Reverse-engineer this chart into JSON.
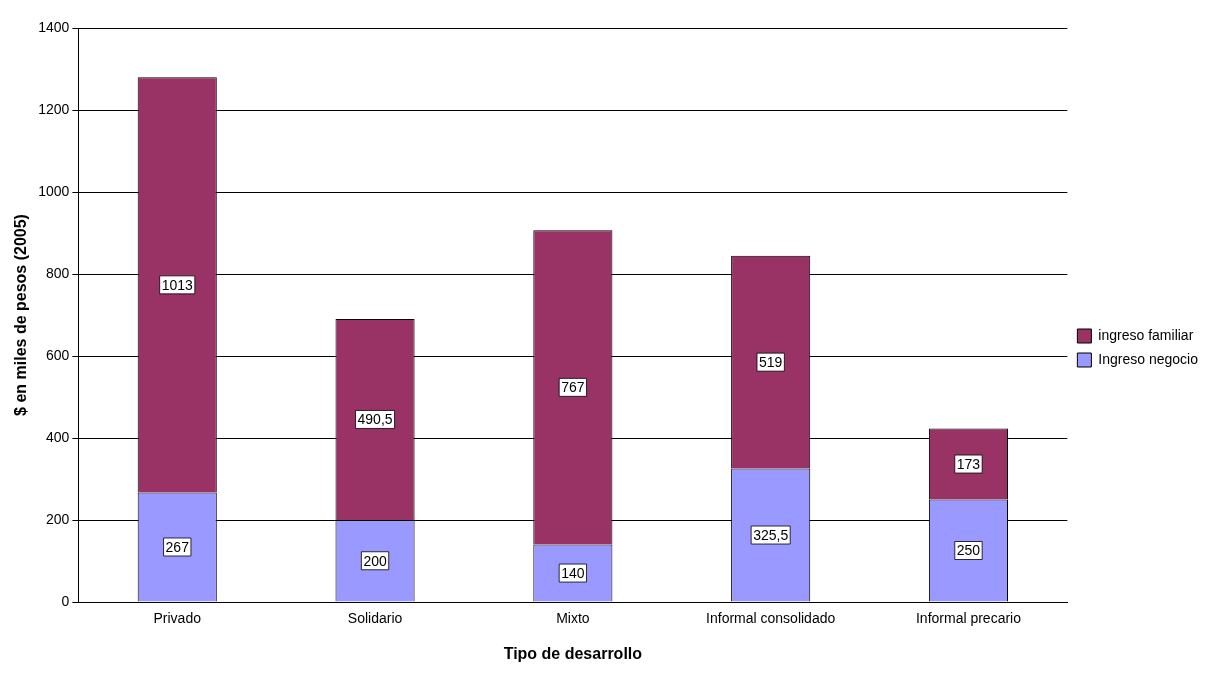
{
  "chart_data": {
    "type": "bar",
    "stacked": true,
    "xlabel": "Tipo de desarrollo",
    "ylabel": "$ en miles de pesos (2005)",
    "categories": [
      "Privado",
      "Solidario",
      "Mixto",
      "Informal consolidado",
      "Informal precario"
    ],
    "series": [
      {
        "name": "Ingreso negocio",
        "color": "#9999ff",
        "values": [
          267,
          200,
          140,
          325.5,
          250
        ],
        "value_labels": [
          "267",
          "200",
          "140",
          "325,5",
          "250"
        ]
      },
      {
        "name": "ingreso familiar",
        "color": "#993366",
        "values": [
          1013,
          490.5,
          767,
          519,
          173
        ],
        "value_labels": [
          "1013",
          "490,5",
          "767",
          "519",
          "173"
        ]
      }
    ],
    "ylim": [
      0,
      1400
    ],
    "yticks": [
      0,
      200,
      400,
      600,
      800,
      1000,
      1200,
      1400
    ],
    "grid": "y",
    "legend": "right"
  }
}
